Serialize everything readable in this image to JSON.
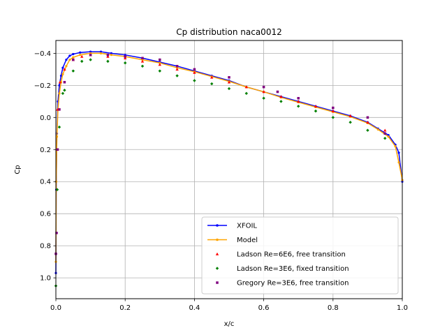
{
  "chart_data": {
    "type": "line",
    "title": "Cp distribution naca0012",
    "xlabel": "x/c",
    "ylabel": "Cp",
    "xlim": [
      0.0,
      1.0
    ],
    "ylim": [
      1.13,
      -0.48
    ],
    "y_inverted": true,
    "grid": true,
    "legend_position": "bottom-right",
    "x_ticks": [
      "0.0",
      "0.2",
      "0.4",
      "0.6",
      "0.8",
      "1.0"
    ],
    "y_ticks": [
      "−0.4",
      "−0.2",
      "0.0",
      "0.2",
      "0.4",
      "0.6",
      "0.8",
      "1.0"
    ],
    "series": [
      {
        "name": "XFOIL",
        "kind": "line",
        "color": "#0000ff",
        "marker": "dot",
        "x": [
          0.0,
          0.001,
          0.003,
          0.006,
          0.01,
          0.015,
          0.02,
          0.03,
          0.04,
          0.05,
          0.07,
          0.1,
          0.13,
          0.16,
          0.2,
          0.25,
          0.3,
          0.35,
          0.4,
          0.45,
          0.5,
          0.55,
          0.6,
          0.65,
          0.7,
          0.75,
          0.8,
          0.85,
          0.9,
          0.93,
          0.96,
          0.98,
          0.99,
          1.0
        ],
        "y": [
          0.97,
          0.45,
          0.1,
          -0.1,
          -0.2,
          -0.26,
          -0.31,
          -0.36,
          -0.385,
          -0.395,
          -0.405,
          -0.41,
          -0.41,
          -0.4,
          -0.39,
          -0.37,
          -0.345,
          -0.32,
          -0.29,
          -0.26,
          -0.23,
          -0.19,
          -0.16,
          -0.13,
          -0.1,
          -0.07,
          -0.04,
          -0.01,
          0.03,
          0.07,
          0.11,
          0.17,
          0.22,
          0.4
        ]
      },
      {
        "name": "Model",
        "kind": "line",
        "color": "#ffa500",
        "marker": "dot",
        "x": [
          0.0,
          0.001,
          0.003,
          0.006,
          0.01,
          0.015,
          0.02,
          0.03,
          0.04,
          0.05,
          0.07,
          0.1,
          0.13,
          0.16,
          0.2,
          0.25,
          0.3,
          0.35,
          0.4,
          0.45,
          0.5,
          0.55,
          0.6,
          0.65,
          0.7,
          0.75,
          0.8,
          0.85,
          0.9,
          0.93,
          0.96,
          0.98,
          0.99,
          1.0
        ],
        "y": [
          0.9,
          0.4,
          0.12,
          -0.05,
          -0.15,
          -0.22,
          -0.27,
          -0.32,
          -0.36,
          -0.375,
          -0.39,
          -0.4,
          -0.4,
          -0.39,
          -0.38,
          -0.36,
          -0.34,
          -0.31,
          -0.285,
          -0.255,
          -0.225,
          -0.19,
          -0.16,
          -0.125,
          -0.095,
          -0.065,
          -0.035,
          -0.005,
          0.035,
          0.075,
          0.12,
          0.18,
          0.28,
          0.39
        ]
      },
      {
        "name": "Ladson Re=6E6, free transition",
        "kind": "scatter",
        "color": "#ff0000",
        "marker": "triangle",
        "x": [
          0.005,
          0.012,
          0.025,
          0.05,
          0.075,
          0.1,
          0.15,
          0.2,
          0.25,
          0.3,
          0.35,
          0.4,
          0.45,
          0.5,
          0.55,
          0.6,
          0.65,
          0.7,
          0.75,
          0.8,
          0.85,
          0.9,
          0.95
        ],
        "y": [
          -0.05,
          -0.22,
          -0.3,
          -0.36,
          -0.38,
          -0.39,
          -0.38,
          -0.37,
          -0.35,
          -0.33,
          -0.3,
          -0.28,
          -0.25,
          -0.22,
          -0.19,
          -0.16,
          -0.13,
          -0.1,
          -0.07,
          -0.04,
          -0.01,
          0.03,
          0.08
        ]
      },
      {
        "name": "Ladson Re=3E6, fixed transition",
        "kind": "scatter",
        "color": "#008000",
        "marker": "diamond",
        "x": [
          0.0,
          0.004,
          0.01,
          0.02,
          0.025,
          0.05,
          0.075,
          0.1,
          0.15,
          0.2,
          0.25,
          0.3,
          0.35,
          0.4,
          0.45,
          0.5,
          0.55,
          0.6,
          0.65,
          0.7,
          0.75,
          0.8,
          0.85,
          0.9,
          0.95
        ],
        "y": [
          1.05,
          0.45,
          0.06,
          -0.15,
          -0.17,
          -0.29,
          -0.35,
          -0.36,
          -0.35,
          -0.34,
          -0.32,
          -0.29,
          -0.26,
          -0.23,
          -0.21,
          -0.18,
          -0.15,
          -0.12,
          -0.1,
          -0.07,
          -0.04,
          0.0,
          0.03,
          0.08,
          0.13
        ]
      },
      {
        "name": "Gregory Re=3E6, free transition",
        "kind": "scatter",
        "color": "#800080",
        "marker": "square",
        "x": [
          0.0,
          0.002,
          0.005,
          0.01,
          0.025,
          0.05,
          0.1,
          0.15,
          0.2,
          0.25,
          0.3,
          0.35,
          0.4,
          0.5,
          0.6,
          0.64,
          0.7,
          0.8,
          0.9,
          0.95
        ],
        "y": [
          0.85,
          0.72,
          0.2,
          -0.05,
          -0.22,
          -0.36,
          -0.39,
          -0.39,
          -0.38,
          -0.37,
          -0.36,
          -0.32,
          -0.3,
          -0.25,
          -0.19,
          -0.16,
          -0.12,
          -0.06,
          0.0,
          0.1
        ]
      }
    ]
  }
}
